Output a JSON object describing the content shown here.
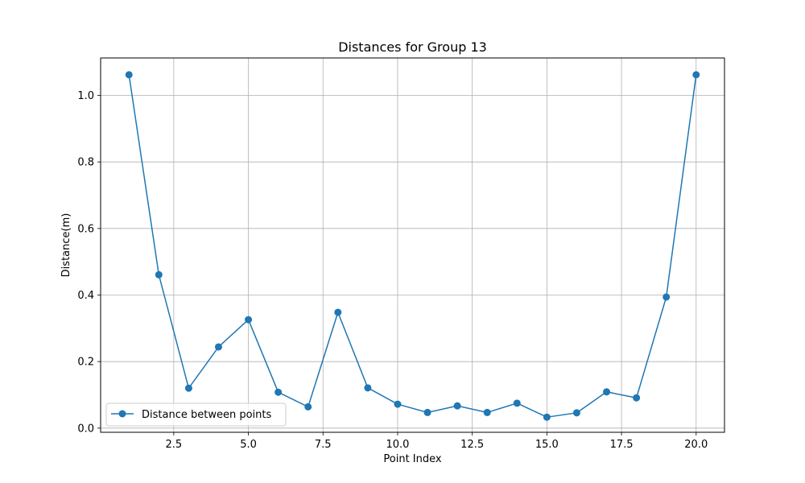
{
  "chart_data": {
    "type": "line",
    "title": "Distances for Group 13",
    "xlabel": "Point Index",
    "ylabel": "Distance(m)",
    "xlim": [
      0.05,
      20.95
    ],
    "ylim": [
      -0.0125,
      1.1125
    ],
    "xticks": [
      2.5,
      5.0,
      7.5,
      10.0,
      12.5,
      15.0,
      17.5,
      20.0
    ],
    "xtick_labels": [
      "2.5",
      "5.0",
      "7.5",
      "10.0",
      "12.5",
      "15.0",
      "17.5",
      "20.0"
    ],
    "yticks": [
      0.0,
      0.2,
      0.4,
      0.6,
      0.8,
      1.0
    ],
    "ytick_labels": [
      "0.0",
      "0.2",
      "0.4",
      "0.6",
      "0.8",
      "1.0"
    ],
    "grid": true,
    "legend_position": "lower-left",
    "series": [
      {
        "name": "Distance between points",
        "color": "#1f77b4",
        "marker": "circle",
        "x": [
          1,
          2,
          3,
          4,
          5,
          6,
          7,
          8,
          9,
          10,
          11,
          12,
          13,
          14,
          15,
          16,
          17,
          18,
          19,
          20
        ],
        "y": [
          1.062,
          0.461,
          0.12,
          0.244,
          0.326,
          0.108,
          0.064,
          0.348,
          0.121,
          0.072,
          0.047,
          0.067,
          0.047,
          0.075,
          0.033,
          0.046,
          0.109,
          0.091,
          0.394,
          1.062
        ]
      }
    ]
  }
}
